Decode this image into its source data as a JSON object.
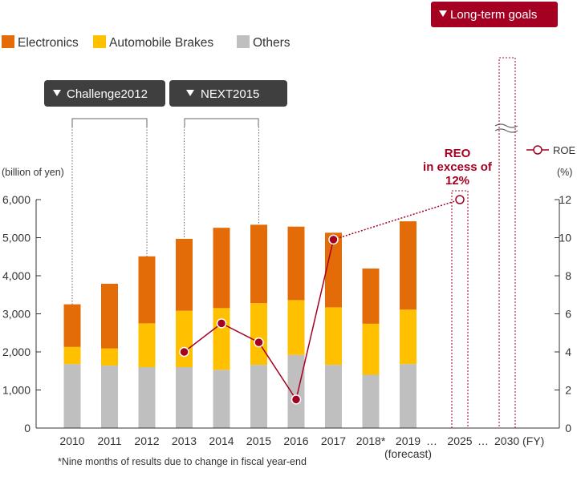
{
  "chart_data": {
    "type": "bar",
    "stacked": true,
    "categories": [
      "2010",
      "2011",
      "2012",
      "2013",
      "2014",
      "2015",
      "2016",
      "2017",
      "2018*",
      "2019"
    ],
    "series": [
      {
        "name": "Others",
        "color": "#bfbfbf",
        "values": [
          1680,
          1640,
          1600,
          1600,
          1530,
          1660,
          1920,
          1660,
          1400,
          1680
        ]
      },
      {
        "name": "Automobile Brakes",
        "color": "#ffc000",
        "values": [
          450,
          450,
          1150,
          1480,
          1620,
          1620,
          1440,
          1510,
          1340,
          1430
        ]
      },
      {
        "name": "Electronics",
        "color": "#e36c09",
        "values": [
          1120,
          1700,
          1760,
          1890,
          2110,
          2060,
          1930,
          1960,
          1450,
          2320
        ]
      }
    ],
    "roe": {
      "name": "ROE",
      "color": "#a50021",
      "points": [
        {
          "category": "2013",
          "value": 4.0
        },
        {
          "category": "2014",
          "value": 5.5
        },
        {
          "category": "2015",
          "value": 4.5
        },
        {
          "category": "2016",
          "value": 1.5
        },
        {
          "category": "2017",
          "value": 9.9
        }
      ],
      "target": {
        "category": "2025",
        "value": 12.0
      }
    },
    "ylabel_left": "(billion of yen)",
    "ylabel_right": "(%)",
    "ylim_left": [
      0,
      6000
    ],
    "ylim_right": [
      0,
      12
    ],
    "left_ticks": [
      "0",
      "1,000",
      "2,000",
      "3,000",
      "4,000",
      "5,000",
      "6,000"
    ],
    "right_ticks": [
      "0",
      "2",
      "4",
      "6",
      "8",
      "10",
      "12"
    ],
    "extra_x_labels": {
      "y2025": "2025",
      "y2030": "2030 (FY)",
      "ellipsis": "…",
      "forecast": "(forecast)"
    },
    "legend_position": "top-left",
    "grid": false
  },
  "labels": {
    "long_term_goals": "Long-term goals",
    "challenge": "Challenge2012",
    "next": "NEXT2015",
    "reo_line1": "REO",
    "reo_line2": "in excess of",
    "reo_line3": "12%",
    "footnote": "*Nine months of results due to change in fiscal year-end",
    "roe_legend": "ROE"
  }
}
